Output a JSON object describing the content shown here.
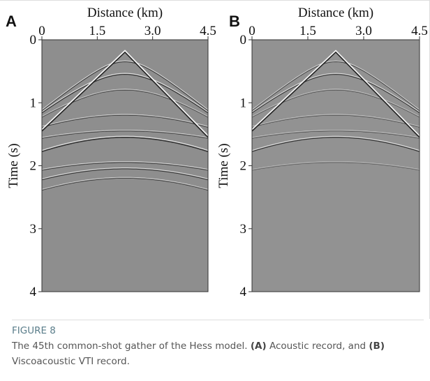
{
  "chart_data": [
    {
      "type": "image",
      "panel": "A",
      "xlabel": "Distance (km)",
      "ylabel": "Time (s)",
      "xlim": [
        0,
        4.5
      ],
      "xticks": [
        0,
        1.5,
        {
          "value": 3,
          "label": "3.0"
        },
        4.5
      ],
      "ylim": [
        0,
        4
      ],
      "yticks": [
        0,
        1,
        2,
        3,
        4
      ],
      "y_inverted": true,
      "color": "#8e8e8e"
    },
    {
      "type": "image",
      "panel": "B",
      "xlabel": "Distance (km)",
      "ylabel": "Time (s)",
      "xlim": [
        0,
        4.5
      ],
      "xticks": [
        0,
        1.5,
        {
          "value": 3,
          "label": "3.0"
        },
        4.5
      ],
      "ylim": [
        0,
        4
      ],
      "yticks": [
        0,
        1,
        2,
        3,
        4
      ],
      "y_inverted": true,
      "color": "#929292"
    }
  ],
  "figure": {
    "label": "FIGURE 8",
    "caption": [
      "The 45th common-shot gather of the Hess model. ",
      "(A)",
      " Acoustic record, and ",
      "(B)",
      " Viscoacoustic VTI record."
    ]
  }
}
